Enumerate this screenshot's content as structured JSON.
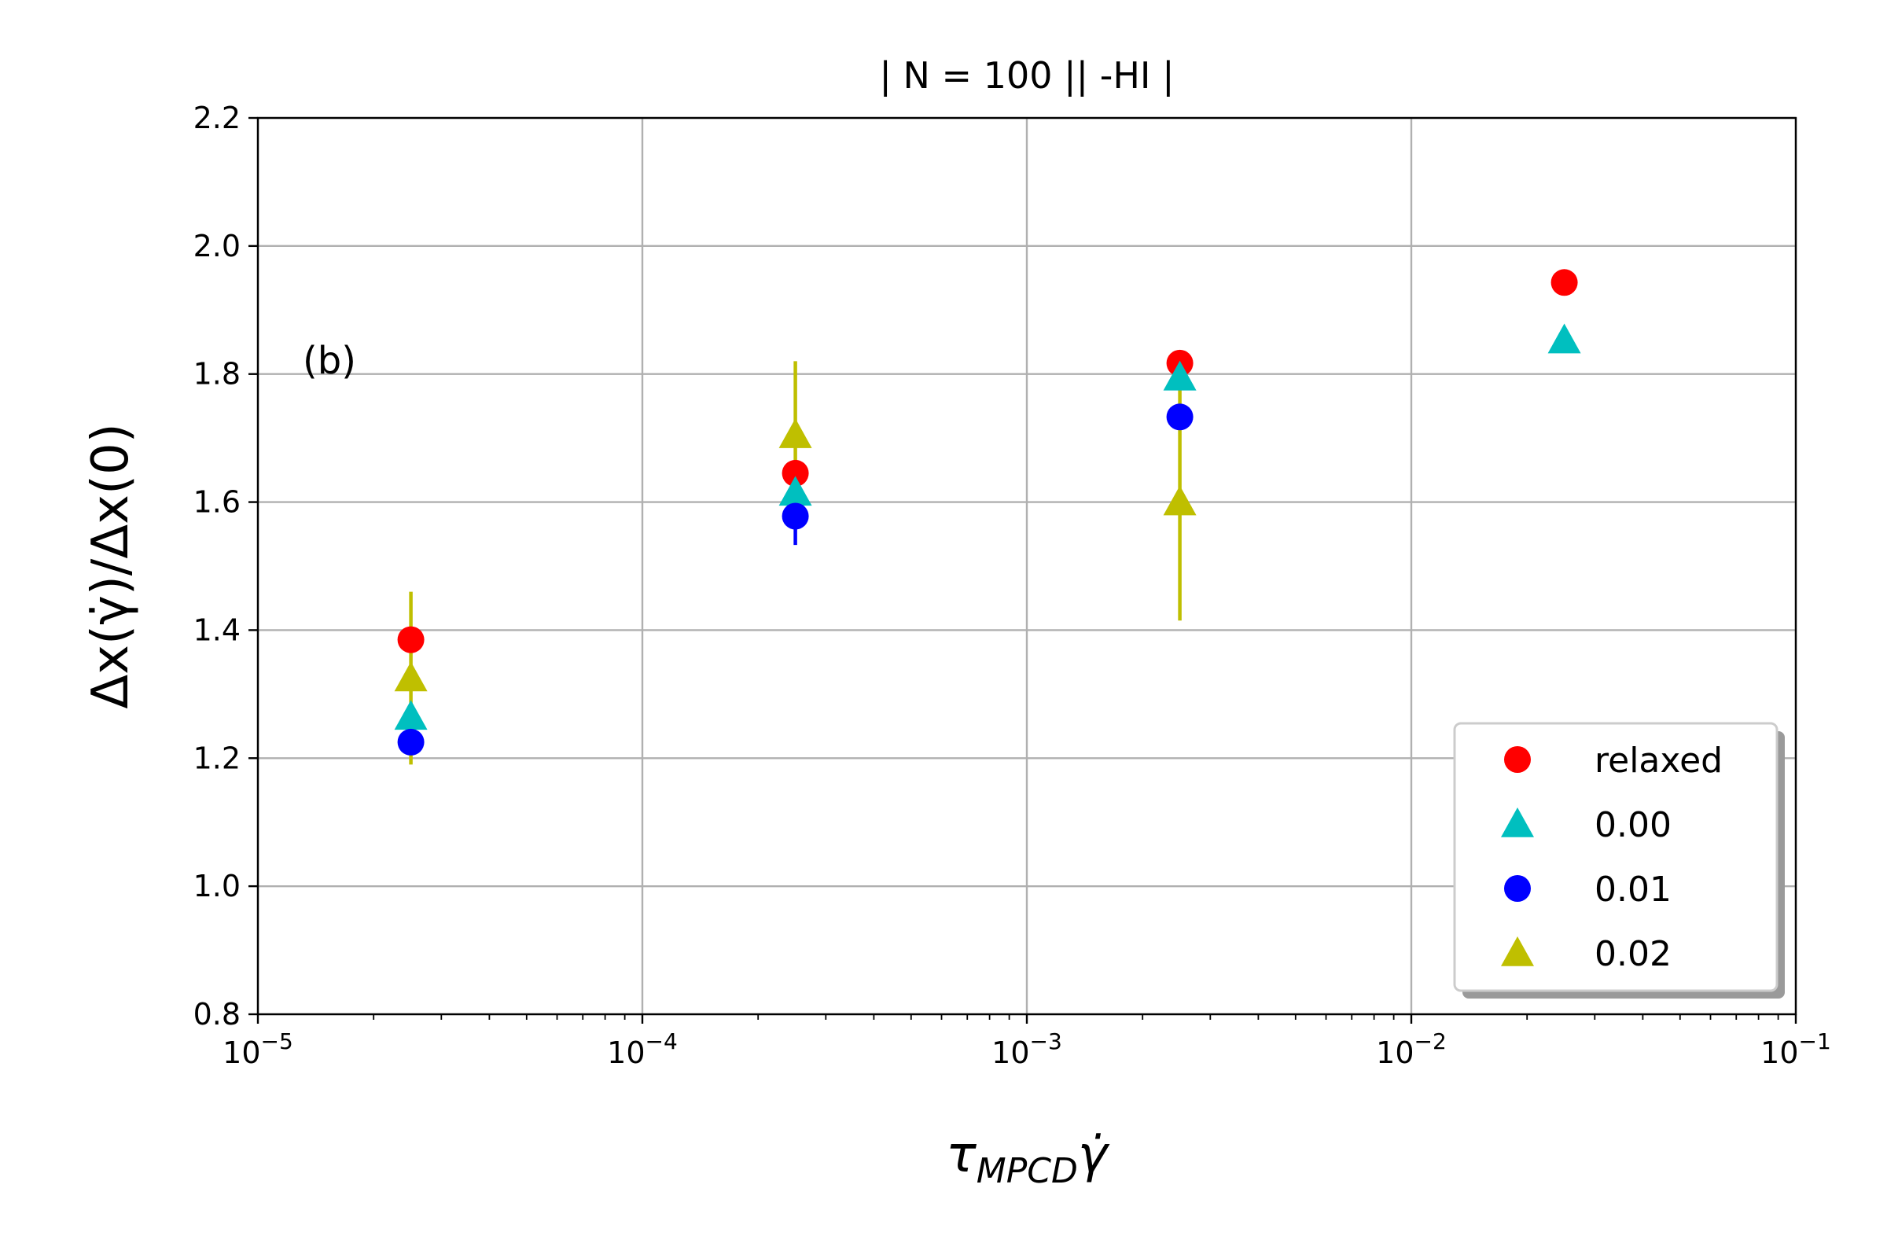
{
  "chart_data": {
    "type": "scatter",
    "title": "| N = 100 || -HI  |",
    "xlabel": "τ",
    "xlabel_sub": "MPCD",
    "xlabel_tail": "γ̇",
    "ylabel": "Δx(γ̇)/Δx(0)",
    "annotation": "(b)",
    "xscale": "log",
    "xlim": [
      1e-05,
      0.1
    ],
    "ylim": [
      0.8,
      2.2
    ],
    "grid": true,
    "legend_position": "lower-right",
    "x_ticks": [
      {
        "value": 1e-05,
        "base": "10",
        "exp": "−5"
      },
      {
        "value": 0.0001,
        "base": "10",
        "exp": "−4"
      },
      {
        "value": 0.001,
        "base": "10",
        "exp": "−3"
      },
      {
        "value": 0.01,
        "base": "10",
        "exp": "−2"
      },
      {
        "value": 0.1,
        "base": "10",
        "exp": "−1"
      }
    ],
    "y_ticks": [
      {
        "value": 0.8,
        "label": "0.8"
      },
      {
        "value": 1.0,
        "label": "1.0"
      },
      {
        "value": 1.2,
        "label": "1.2"
      },
      {
        "value": 1.4,
        "label": "1.4"
      },
      {
        "value": 1.6,
        "label": "1.6"
      },
      {
        "value": 1.8,
        "label": "1.8"
      },
      {
        "value": 2.0,
        "label": "2.0"
      },
      {
        "value": 2.2,
        "label": "2.2"
      }
    ],
    "series": [
      {
        "name": "relaxed",
        "marker": "circle",
        "color": "#ff0000",
        "points": [
          {
            "x": 2.5e-05,
            "y": 1.385
          },
          {
            "x": 0.00025,
            "y": 1.645
          },
          {
            "x": 0.0025,
            "y": 1.817
          },
          {
            "x": 0.025,
            "y": 1.943
          }
        ]
      },
      {
        "name": "0.00",
        "marker": "triangle",
        "color": "#00bfbf",
        "points": [
          {
            "x": 2.5e-05,
            "y": 1.265
          },
          {
            "x": 0.00025,
            "y": 1.615
          },
          {
            "x": 0.0025,
            "y": 1.795
          },
          {
            "x": 0.025,
            "y": 1.853
          }
        ]
      },
      {
        "name": "0.01",
        "marker": "circle",
        "color": "#0000ff",
        "points": [
          {
            "x": 2.5e-05,
            "y": 1.225,
            "err": 0.02
          },
          {
            "x": 0.00025,
            "y": 1.578,
            "err": 0.045
          },
          {
            "x": 0.0025,
            "y": 1.733,
            "err": 0.02
          }
        ]
      },
      {
        "name": "0.02",
        "marker": "triangle",
        "color": "#bfbf00",
        "points": [
          {
            "x": 2.5e-05,
            "y": 1.325,
            "err": 0.135
          },
          {
            "x": 0.00025,
            "y": 1.705,
            "err": 0.115
          },
          {
            "x": 0.0025,
            "y": 1.6,
            "err": 0.185
          }
        ]
      }
    ]
  }
}
